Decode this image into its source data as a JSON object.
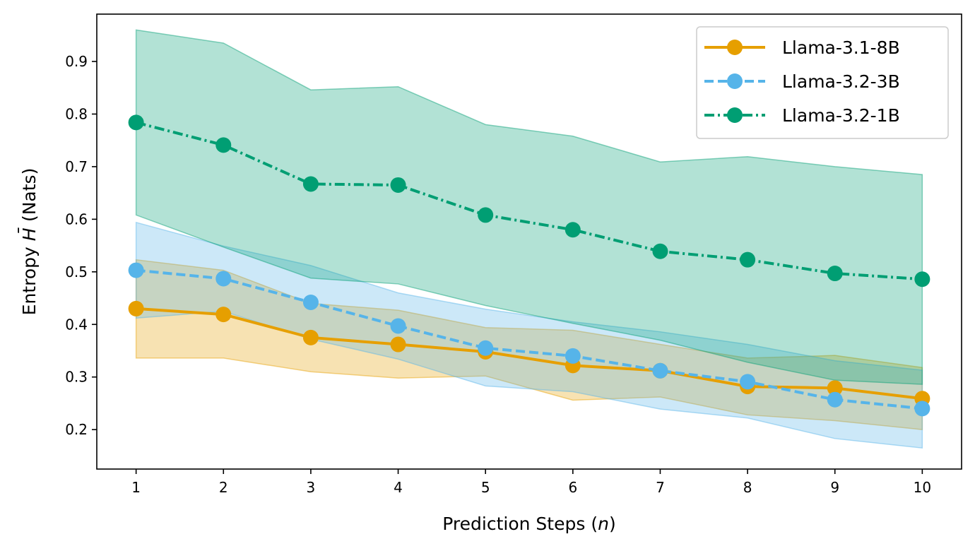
{
  "chart_data": {
    "type": "line",
    "x": [
      1,
      2,
      3,
      4,
      5,
      6,
      7,
      8,
      9,
      10
    ],
    "xlabel_prefix": "Prediction Steps (",
    "xlabel_var": "n",
    "xlabel_suffix": ")",
    "ylabel_prefix": "Entropy ",
    "ylabel_var": "H",
    "ylabel_bar": "¯",
    "ylabel_suffix": " (Nats)",
    "xlim": [
      0.55,
      10.45
    ],
    "ylim": [
      0.125,
      0.99
    ],
    "xticks": [
      "1",
      "2",
      "3",
      "4",
      "5",
      "6",
      "7",
      "8",
      "9",
      "10"
    ],
    "yticks": [
      0.2,
      0.3,
      0.4,
      0.5,
      0.6,
      0.7,
      0.8,
      0.9
    ],
    "ytick_labels": [
      "0.2",
      "0.3",
      "0.4",
      "0.5",
      "0.6",
      "0.7",
      "0.8",
      "0.9"
    ],
    "grid": false,
    "legend_position": "top-right",
    "series": [
      {
        "name": "Llama-3.1-8B",
        "color": "#E69F00",
        "dash": "solid",
        "values": [
          0.43,
          0.419,
          0.375,
          0.362,
          0.348,
          0.322,
          0.312,
          0.282,
          0.279,
          0.259
        ],
        "upper": [
          0.523,
          0.503,
          0.44,
          0.427,
          0.394,
          0.389,
          0.362,
          0.336,
          0.341,
          0.318
        ],
        "lower": [
          0.336,
          0.336,
          0.31,
          0.298,
          0.302,
          0.256,
          0.262,
          0.228,
          0.217,
          0.2
        ]
      },
      {
        "name": "Llama-3.2-3B",
        "color": "#56B4E9",
        "dash": "dashed",
        "values": [
          0.503,
          0.487,
          0.442,
          0.397,
          0.355,
          0.34,
          0.312,
          0.291,
          0.257,
          0.24
        ],
        "upper": [
          0.594,
          0.549,
          0.512,
          0.46,
          0.429,
          0.405,
          0.386,
          0.362,
          0.331,
          0.313
        ],
        "lower": [
          0.412,
          0.425,
          0.372,
          0.334,
          0.283,
          0.272,
          0.239,
          0.222,
          0.183,
          0.165
        ]
      },
      {
        "name": "Llama-3.2-1B",
        "color": "#009E73",
        "dash": "dashdot",
        "values": [
          0.784,
          0.741,
          0.667,
          0.665,
          0.608,
          0.58,
          0.539,
          0.523,
          0.497,
          0.486
        ],
        "upper": [
          0.96,
          0.935,
          0.846,
          0.852,
          0.78,
          0.758,
          0.709,
          0.719,
          0.7,
          0.685
        ],
        "lower": [
          0.608,
          0.547,
          0.488,
          0.477,
          0.436,
          0.402,
          0.37,
          0.328,
          0.294,
          0.286
        ]
      }
    ]
  }
}
